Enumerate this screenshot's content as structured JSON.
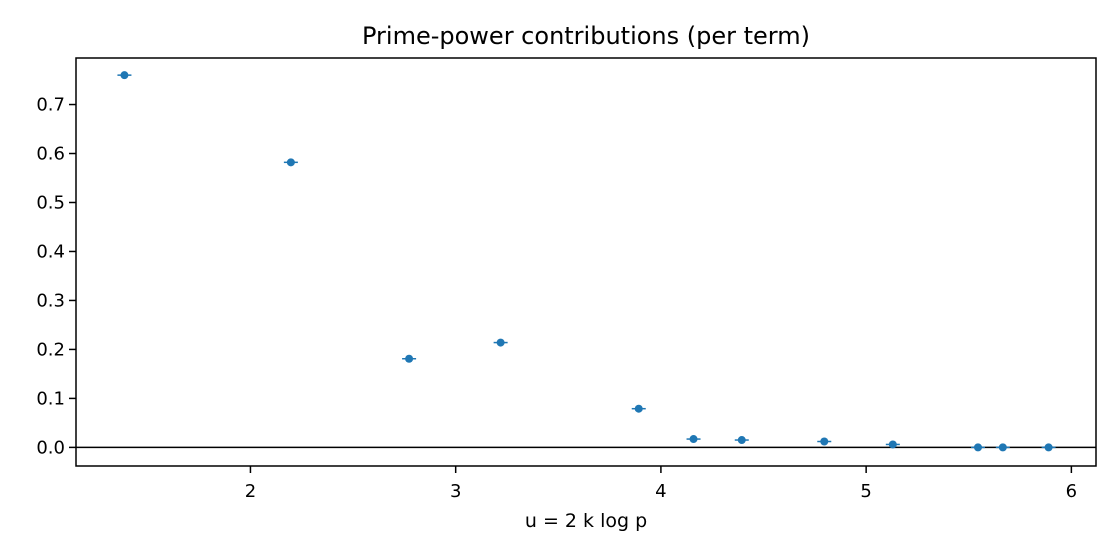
{
  "chart_data": {
    "type": "scatter",
    "title": "Prime-power contributions (per term)",
    "xlabel": "u = 2 k log p",
    "ylabel": "",
    "xlim": [
      1.15,
      6.12
    ],
    "ylim": [
      -0.038,
      0.795
    ],
    "x_ticks": [
      2,
      3,
      4,
      5,
      6
    ],
    "y_ticks": [
      0.0,
      0.1,
      0.2,
      0.3,
      0.4,
      0.5,
      0.6,
      0.7
    ],
    "x_tick_labels": [
      "2",
      "3",
      "4",
      "5",
      "6"
    ],
    "y_tick_labels": [
      "0.0",
      "0.1",
      "0.2",
      "0.3",
      "0.4",
      "0.5",
      "0.6",
      "0.7"
    ],
    "grid": false,
    "reference_line_y": 0,
    "marker_color": "#1f77b4",
    "points": [
      {
        "x": 1.386,
        "y": 0.76
      },
      {
        "x": 2.197,
        "y": 0.582
      },
      {
        "x": 2.773,
        "y": 0.181
      },
      {
        "x": 3.219,
        "y": 0.214
      },
      {
        "x": 3.892,
        "y": 0.079
      },
      {
        "x": 4.159,
        "y": 0.017
      },
      {
        "x": 4.394,
        "y": 0.015
      },
      {
        "x": 4.796,
        "y": 0.012
      },
      {
        "x": 5.13,
        "y": 0.006
      },
      {
        "x": 5.545,
        "y": 0.0
      },
      {
        "x": 5.666,
        "y": 0.0
      },
      {
        "x": 5.889,
        "y": 0.0
      }
    ]
  }
}
